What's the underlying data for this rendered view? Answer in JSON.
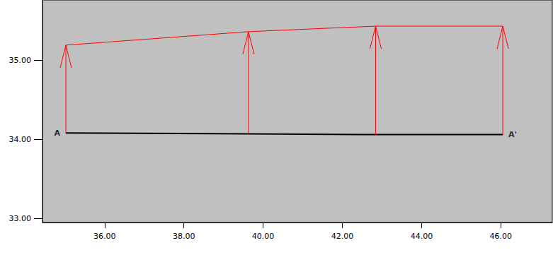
{
  "chart_data": {
    "type": "line",
    "x": [
      35.02,
      39.63,
      42.84,
      46.05
    ],
    "values": [
      35.19,
      35.36,
      35.43,
      35.43
    ],
    "baseline": [
      34.08,
      34.07,
      34.06,
      34.06
    ],
    "color": "#ff0000",
    "baseline_color": "#000000",
    "annotations": [
      {
        "text": "A",
        "x": 35.02,
        "y": 34.08
      },
      {
        "text": "A'",
        "x": 46.05,
        "y": 34.06
      }
    ],
    "xlim": [
      34.43,
      47.3
    ],
    "xticks": [
      {
        "value": 36,
        "label": "36.00"
      },
      {
        "value": 38,
        "label": "38.00"
      },
      {
        "value": 40,
        "label": "40.00"
      },
      {
        "value": 42,
        "label": "42.00"
      },
      {
        "value": 44,
        "label": "44.00"
      },
      {
        "value": 46,
        "label": "46.00"
      }
    ],
    "ylim": [
      32.95,
      35.76
    ],
    "yticks": [
      {
        "value": 33,
        "label": "33.00"
      },
      {
        "value": 34,
        "label": "34.00"
      },
      {
        "value": 35,
        "label": "35.00"
      }
    ],
    "grid": false
  }
}
